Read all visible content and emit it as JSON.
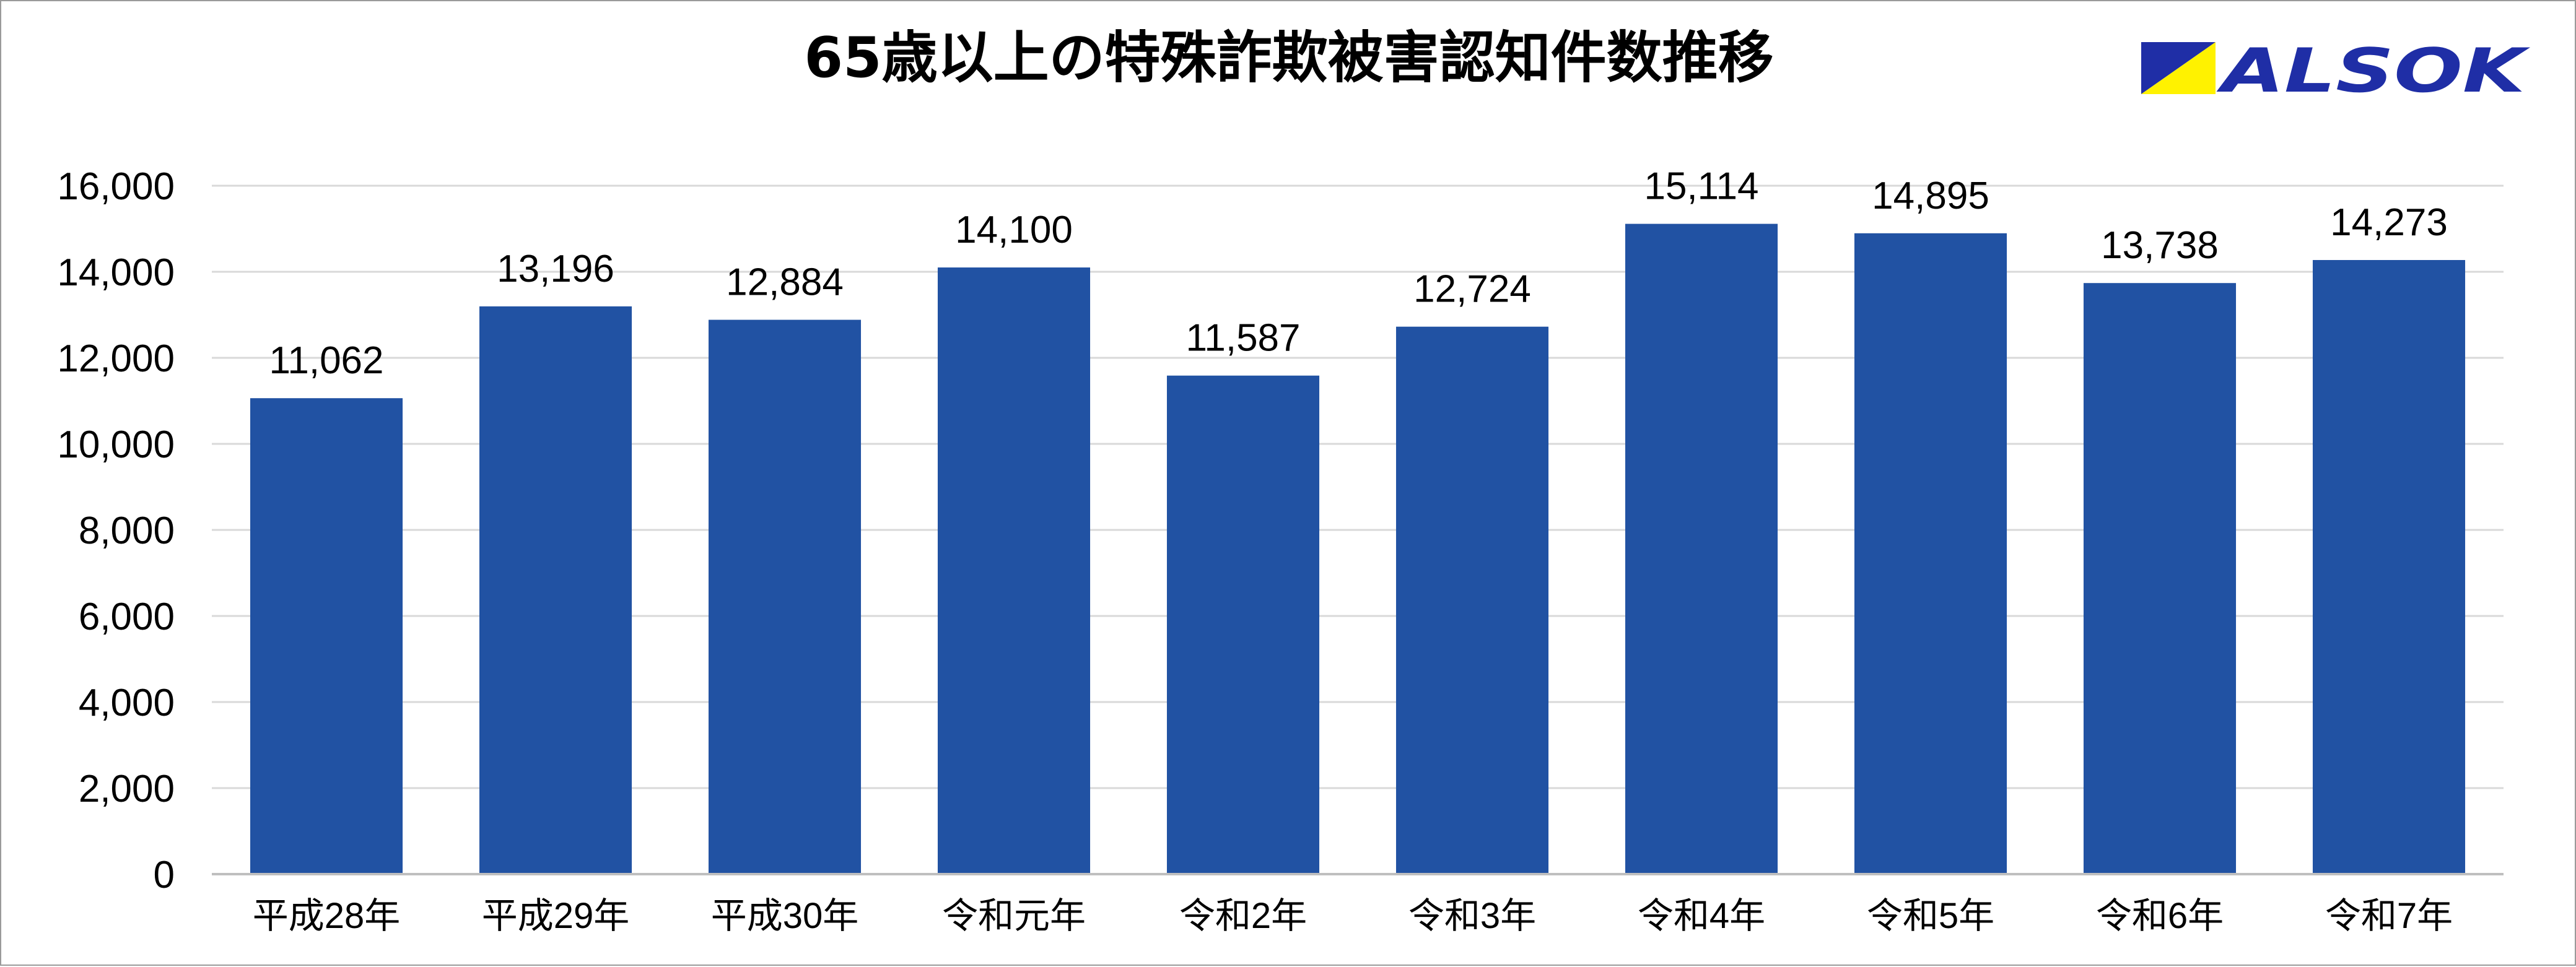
{
  "brand": {
    "name": "ALSOK",
    "colors": {
      "blue": "#1f2ea6",
      "yellow": "#fff200"
    }
  },
  "chart_data": {
    "type": "bar",
    "title": "65歳以上の特殊詐欺被害認知件数推移",
    "categories": [
      "平成28年",
      "平成29年",
      "平成30年",
      "令和元年",
      "令和2年",
      "令和3年",
      "令和4年",
      "令和5年",
      "令和6年",
      "令和7年"
    ],
    "values": [
      11062,
      13196,
      12884,
      14100,
      11587,
      12724,
      15114,
      14895,
      13738,
      14273
    ],
    "value_labels": [
      "11,062",
      "13,196",
      "12,884",
      "14,100",
      "11,587",
      "12,724",
      "15,114",
      "14,895",
      "13,738",
      "14,273"
    ],
    "yticks": [
      "0",
      "2,000",
      "4,000",
      "6,000",
      "8,000",
      "10,000",
      "12,000",
      "14,000",
      "16,000"
    ],
    "ylim": [
      0,
      16000
    ],
    "ystep": 2000,
    "grid": true,
    "xlabel": "",
    "ylabel": "",
    "colors": {
      "bar": "#2152a3",
      "grid": "#d9d9d9",
      "axis": "#bfbfbf",
      "text": "#000000"
    }
  }
}
